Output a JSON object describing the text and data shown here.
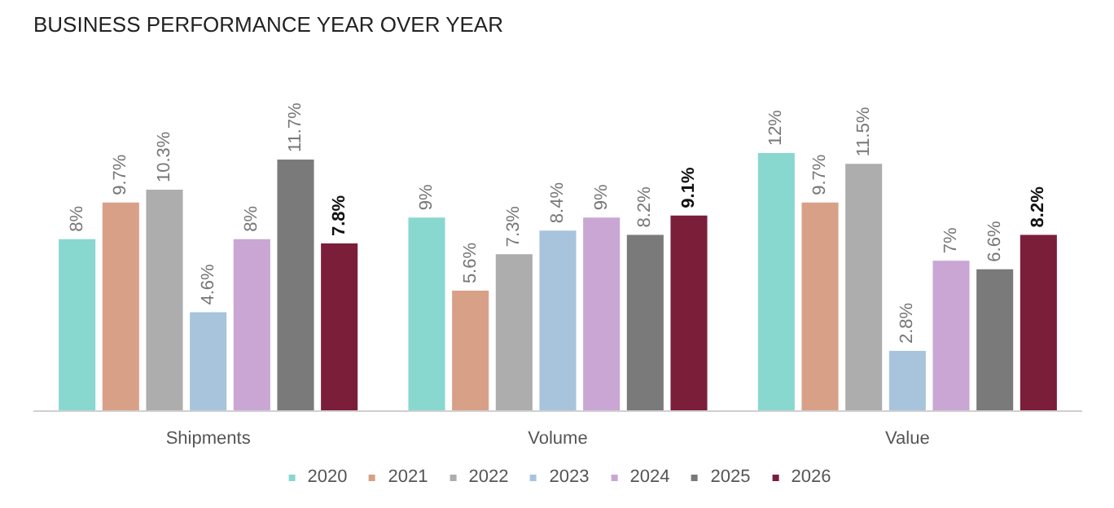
{
  "chart_data": {
    "type": "bar",
    "title": "BUSINESS PERFORMANCE YEAR OVER YEAR",
    "categories": [
      "Shipments",
      "Volume",
      "Value"
    ],
    "series": [
      {
        "name": "2020",
        "color": "#88d8d0",
        "values": [
          8,
          9,
          12
        ],
        "value_labels": [
          "8%",
          "9%",
          "12%"
        ]
      },
      {
        "name": "2021",
        "color": "#d9a088",
        "values": [
          9.7,
          5.6,
          9.7
        ],
        "value_labels": [
          "9.7%",
          "5.6%",
          "9.7%"
        ]
      },
      {
        "name": "2022",
        "color": "#adadad",
        "values": [
          10.3,
          7.3,
          11.5
        ],
        "value_labels": [
          "10.3%",
          "7.3%",
          "11.5%"
        ]
      },
      {
        "name": "2023",
        "color": "#a8c4dc",
        "values": [
          4.6,
          8.4,
          2.8
        ],
        "value_labels": [
          "4.6%",
          "8.4%",
          "2.8%"
        ]
      },
      {
        "name": "2024",
        "color": "#c9a6d4",
        "values": [
          8,
          9,
          7
        ],
        "value_labels": [
          "8%",
          "9%",
          "7%"
        ]
      },
      {
        "name": "2025",
        "color": "#7a7a7a",
        "values": [
          11.7,
          8.2,
          6.6
        ],
        "value_labels": [
          "11.7%",
          "8.2%",
          "6.6%"
        ]
      },
      {
        "name": "2026",
        "color": "#7b1e3a",
        "values": [
          7.8,
          9.1,
          8.2
        ],
        "value_labels": [
          "7.8%",
          "9.1%",
          "8.2%"
        ]
      }
    ],
    "grid": false,
    "legend": "bottom"
  }
}
